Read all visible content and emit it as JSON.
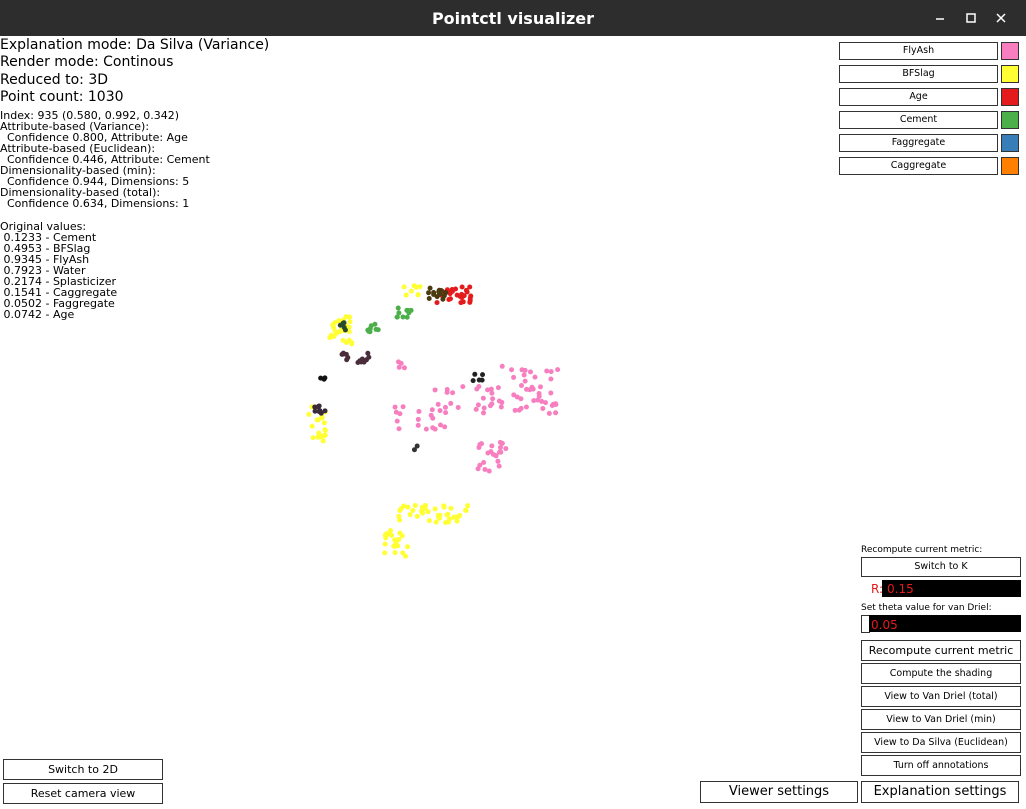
{
  "window": {
    "title": "Pointctl visualizer"
  },
  "status": [
    "Explanation mode: Da Silva (Variance)",
    "Render mode: Continous",
    "Reduced to: 3D",
    "Point count: 1030"
  ],
  "details": [
    "Index: 935 (0.580, 0.992, 0.342)",
    "Attribute-based (Variance):",
    "  Confidence 0.800, Attribute: Age",
    "Attribute-based (Euclidean):",
    "  Confidence 0.446, Attribute: Cement",
    "Dimensionality-based (min):",
    "  Confidence 0.944, Dimensions: 5",
    "Dimensionality-based (total):",
    "  Confidence 0.634, Dimensions: 1"
  ],
  "original_values": {
    "heading": "Original values:",
    "items": [
      " 0.1233 - Cement",
      " 0.4953 - BFSlag",
      " 0.9345 - FlyAsh",
      " 0.7923 - Water",
      " 0.2174 - Splasticizer",
      " 0.1541 - Caggregate",
      " 0.0502 - Faggregate",
      " 0.0742 - Age"
    ]
  },
  "legend": [
    {
      "label": "FlyAsh",
      "color": "#f77fc0"
    },
    {
      "label": "BFSlag",
      "color": "#ffff33"
    },
    {
      "label": "Age",
      "color": "#e41a1c"
    },
    {
      "label": "Cement",
      "color": "#4daf4a"
    },
    {
      "label": "Faggregate",
      "color": "#377eb8"
    },
    {
      "label": "Caggregate",
      "color": "#ff7f00"
    }
  ],
  "controls": {
    "recompute_label": "Recompute current metric:",
    "switch_k": "Switch to K",
    "r_label": "R:",
    "r_value": "0.15",
    "theta_label": "Set theta value for van Driel:",
    "theta_value": "0.05",
    "buttons": [
      "Recompute current metric",
      "Compute the shading",
      "View to Van Driel (total)",
      "View to Van Driel (min)",
      "View to Da Silva (Euclidean)",
      "Turn off annotations"
    ]
  },
  "bottom_left": [
    "Switch to 2D",
    "Reset camera view"
  ],
  "tabs": [
    "Viewer settings",
    "Explanation settings"
  ]
}
